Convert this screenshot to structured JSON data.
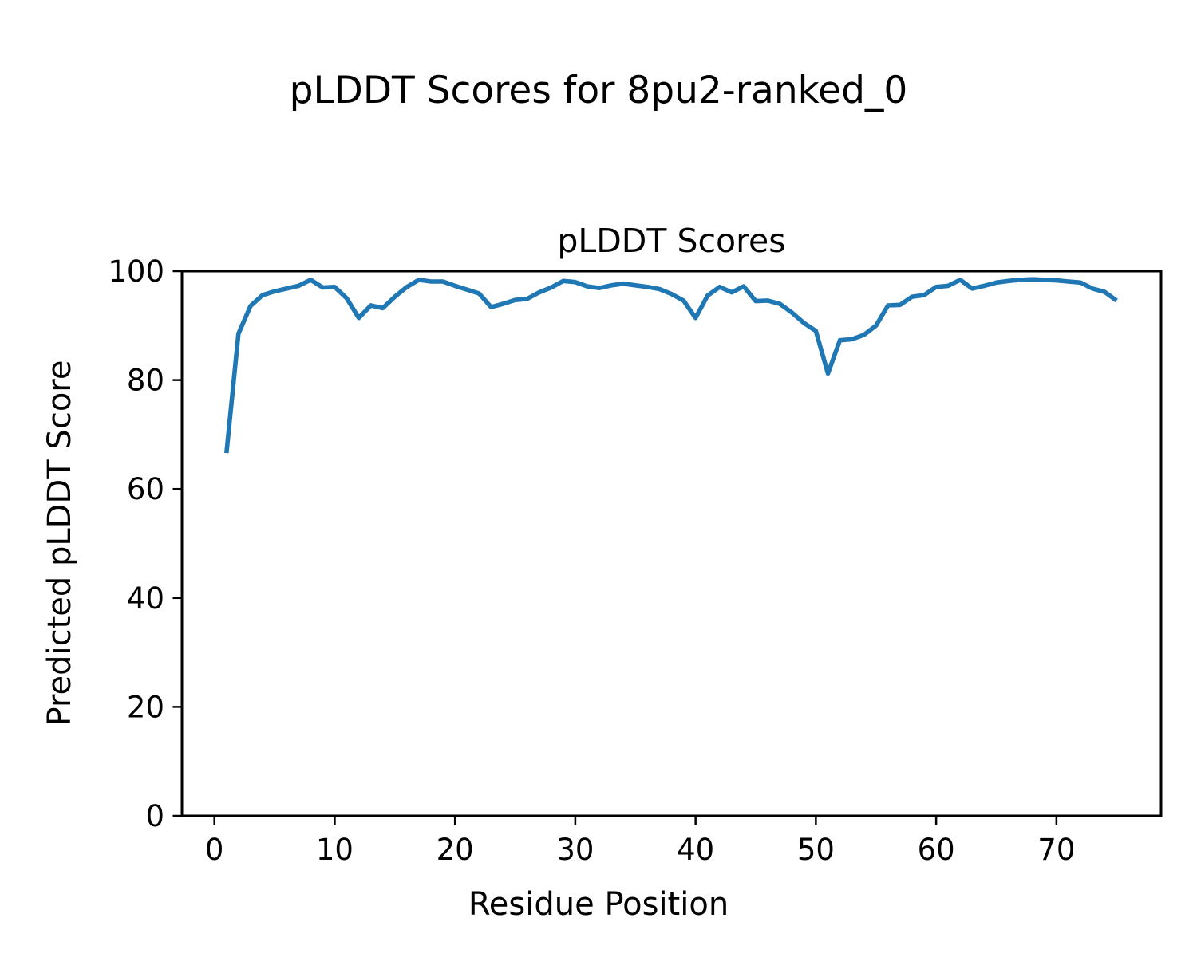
{
  "figure": {
    "suptitle": "pLDDT Scores for 8pu2-ranked_0"
  },
  "chart_data": {
    "type": "line",
    "title": "pLDDT Scores",
    "xlabel": "Residue Position",
    "ylabel": "Predicted pLDDT Score",
    "series_name": "pLDDT",
    "grid": false,
    "legend": "none",
    "xlim": [
      -2.7,
      78.7
    ],
    "ylim": [
      0,
      100
    ],
    "xticks": [
      0,
      10,
      20,
      30,
      40,
      50,
      60,
      70
    ],
    "yticks": [
      0,
      20,
      40,
      60,
      80,
      100
    ],
    "line_color": "#1f77b4",
    "axis_color": "#000000",
    "x": [
      1,
      2,
      3,
      4,
      5,
      6,
      7,
      8,
      9,
      10,
      11,
      12,
      13,
      14,
      15,
      16,
      17,
      18,
      19,
      20,
      21,
      22,
      23,
      24,
      25,
      26,
      27,
      28,
      29,
      30,
      31,
      32,
      33,
      34,
      35,
      36,
      37,
      38,
      39,
      40,
      41,
      42,
      43,
      44,
      45,
      46,
      47,
      48,
      49,
      50,
      51,
      52,
      53,
      54,
      55,
      56,
      57,
      58,
      59,
      60,
      61,
      62,
      63,
      64,
      65,
      66,
      67,
      68,
      69,
      70,
      71,
      72,
      73,
      74,
      75
    ],
    "values": [
      66.6,
      88.5,
      93.6,
      95.6,
      96.3,
      96.8,
      97.3,
      98.4,
      97.0,
      97.1,
      95.0,
      91.4,
      93.7,
      93.2,
      95.3,
      97.1,
      98.4,
      98.1,
      98.1,
      97.3,
      96.6,
      95.9,
      93.4,
      94.0,
      94.7,
      94.9,
      96.1,
      97.0,
      98.2,
      98.0,
      97.2,
      96.9,
      97.4,
      97.7,
      97.4,
      97.1,
      96.7,
      95.8,
      94.6,
      91.4,
      95.5,
      97.1,
      96.1,
      97.2,
      94.5,
      94.6,
      94.0,
      92.4,
      90.5,
      89.0,
      81.2,
      87.3,
      87.5,
      88.3,
      90.0,
      93.7,
      93.8,
      95.3,
      95.6,
      97.1,
      97.3,
      98.4,
      96.8,
      97.3,
      97.9,
      98.2,
      98.4,
      98.5,
      98.4,
      98.3,
      98.1,
      97.9,
      96.8,
      96.2,
      94.6
    ]
  }
}
